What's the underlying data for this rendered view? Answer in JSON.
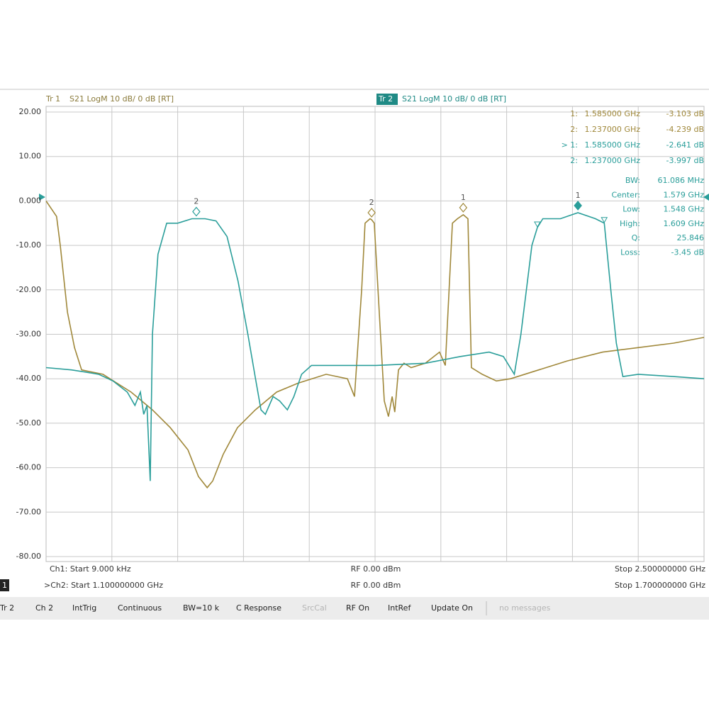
{
  "header": {
    "tr1_name": "Tr 1",
    "tr1_format": "S21 LogM 10 dB/ 0 dB [RT]",
    "tr2_name": "Tr 2",
    "tr2_format": "S21 LogM 10 dB/ 0 dB [RT]"
  },
  "readout": {
    "markers": [
      {
        "label": "1:",
        "freq": "1.585000 GHz",
        "value": "-3.103 dB",
        "trace": 0
      },
      {
        "label": "2:",
        "freq": "1.237000 GHz",
        "value": "-4.239 dB",
        "trace": 0
      },
      {
        "label": "> 1:",
        "freq": "1.585000 GHz",
        "value": "-2.641 dB",
        "trace": 1
      },
      {
        "label": "2:",
        "freq": "1.237000 GHz",
        "value": "-3.997 dB",
        "trace": 1
      }
    ],
    "bandwidth": [
      {
        "label": "BW:",
        "value": "61.086 MHz"
      },
      {
        "label": "Center:",
        "value": "1.579 GHz"
      },
      {
        "label": "Low:",
        "value": "1.548 GHz"
      },
      {
        "label": "High:",
        "value": "1.609 GHz"
      },
      {
        "label": "Q:",
        "value": "25.846"
      },
      {
        "label": "Loss:",
        "value": "-3.45 dB"
      }
    ]
  },
  "chart_data": {
    "type": "line",
    "ylim": [
      -80,
      20
    ],
    "yticks": [
      {
        "value": 20,
        "label": "20.00"
      },
      {
        "value": 10,
        "label": "10.00"
      },
      {
        "value": 0,
        "label": "0.000"
      },
      {
        "value": -10,
        "label": "-10.00"
      },
      {
        "value": -20,
        "label": "-20.00"
      },
      {
        "value": -30,
        "label": "-30.00"
      },
      {
        "value": -40,
        "label": "-40.00"
      },
      {
        "value": -50,
        "label": "-50.00"
      },
      {
        "value": -60,
        "label": "-60.00"
      },
      {
        "value": -70,
        "label": "-70.00"
      },
      {
        "value": -80,
        "label": "-80.00"
      }
    ],
    "grid": true,
    "series": [
      {
        "name": "Tr 1",
        "color": "#a0883a",
        "xlim": [
          9e-06,
          2.5
        ],
        "x": [
          9e-06,
          0.04,
          0.054,
          0.081,
          0.108,
          0.135,
          0.175,
          0.216,
          0.256,
          0.323,
          0.404,
          0.472,
          0.539,
          0.579,
          0.612,
          0.633,
          0.673,
          0.727,
          0.795,
          0.876,
          0.957,
          1.064,
          1.145,
          1.172,
          1.199,
          1.212,
          1.231,
          1.237,
          1.247,
          1.266,
          1.285,
          1.301,
          1.315,
          1.325,
          1.339,
          1.36,
          1.387,
          1.441,
          1.495,
          1.517,
          1.544,
          1.563,
          1.585,
          1.603,
          1.616,
          1.657,
          1.711,
          1.765,
          1.872,
          1.98,
          2.115,
          2.249,
          2.384,
          2.5
        ],
        "values": [
          0,
          -3.5,
          -10,
          -25,
          -33,
          -38,
          -38.5,
          -39,
          -40.5,
          -43,
          -47,
          -51,
          -56,
          -62,
          -64.5,
          -63,
          -57,
          -51,
          -47,
          -43,
          -41,
          -39,
          -40,
          -44,
          -20,
          -5,
          -4,
          -4.239,
          -5,
          -25,
          -45,
          -48.5,
          -44,
          -47.5,
          -38,
          -36.5,
          -37.5,
          -36.5,
          -34,
          -37,
          -5,
          -4,
          -3.103,
          -4,
          -37.5,
          -39,
          -40.5,
          -40,
          -38,
          -36,
          -34,
          -33,
          -32,
          -30.7
        ],
        "markers": [
          {
            "label": "1",
            "freq": 1.585,
            "value": -3.103,
            "active": false
          },
          {
            "label": "2",
            "freq": 1.237,
            "value": -4.239,
            "active": false
          }
        ]
      },
      {
        "name": "Tr 2",
        "color": "#2a9e9a",
        "xlim": [
          1.1,
          1.7
        ],
        "x": [
          1.1,
          1.123,
          1.136,
          1.148,
          1.161,
          1.174,
          1.181,
          1.186,
          1.189,
          1.192,
          1.195,
          1.197,
          1.202,
          1.21,
          1.22,
          1.233,
          1.237,
          1.245,
          1.255,
          1.265,
          1.275,
          1.284,
          1.291,
          1.296,
          1.3,
          1.307,
          1.313,
          1.32,
          1.326,
          1.333,
          1.342,
          1.368,
          1.401,
          1.446,
          1.478,
          1.504,
          1.517,
          1.527,
          1.533,
          1.543,
          1.548,
          1.553,
          1.569,
          1.585,
          1.601,
          1.609,
          1.615,
          1.62,
          1.626,
          1.64,
          1.672,
          1.7
        ],
        "values": [
          -37.5,
          -38,
          -38.5,
          -39,
          -40.5,
          -43,
          -46,
          -43,
          -48,
          -46,
          -63,
          -30,
          -12,
          -5,
          -5,
          -4,
          -3.997,
          -4,
          -4.5,
          -8,
          -18,
          -30,
          -40,
          -47,
          -48,
          -44,
          -45,
          -47,
          -44,
          -39,
          -37,
          -37,
          -37,
          -36.5,
          -35,
          -34,
          -35,
          -39,
          -30,
          -10,
          -6,
          -4,
          -4,
          -2.641,
          -4,
          -5,
          -20,
          -32,
          -39.5,
          -39,
          -39.5,
          -40
        ],
        "markers": [
          {
            "label": "1",
            "freq": 1.585,
            "value": -2.641,
            "active": true
          },
          {
            "label": "2",
            "freq": 1.237,
            "value": -3.997,
            "active": false
          }
        ],
        "bw_markers": [
          {
            "freq": 1.548,
            "value": -6
          },
          {
            "freq": 1.609,
            "value": -5
          }
        ]
      }
    ]
  },
  "footer": {
    "ch1_start": "Ch1: Start 9.000 kHz",
    "ch1_rf": "RF 0.00 dBm",
    "ch1_stop": "Stop 2.500000000 GHz",
    "window": "1",
    "ch2_start": ">Ch2: Start 1.100000000 GHz",
    "ch2_rf": "RF 0.00 dBm",
    "ch2_stop": "Stop 1.700000000 GHz"
  },
  "status_bar": [
    {
      "text": "Tr 2",
      "enabled": true
    },
    {
      "text": "Ch 2",
      "enabled": true
    },
    {
      "text": "IntTrig",
      "enabled": true
    },
    {
      "text": "Continuous",
      "enabled": true
    },
    {
      "text": "BW=10 k",
      "enabled": true
    },
    {
      "text": "C Response",
      "enabled": true
    },
    {
      "text": "SrcCal",
      "enabled": false
    },
    {
      "text": "RF On",
      "enabled": true
    },
    {
      "text": "IntRef",
      "enabled": true
    },
    {
      "text": "Update On",
      "enabled": true
    },
    {
      "text": "no messages",
      "enabled": false
    }
  ]
}
